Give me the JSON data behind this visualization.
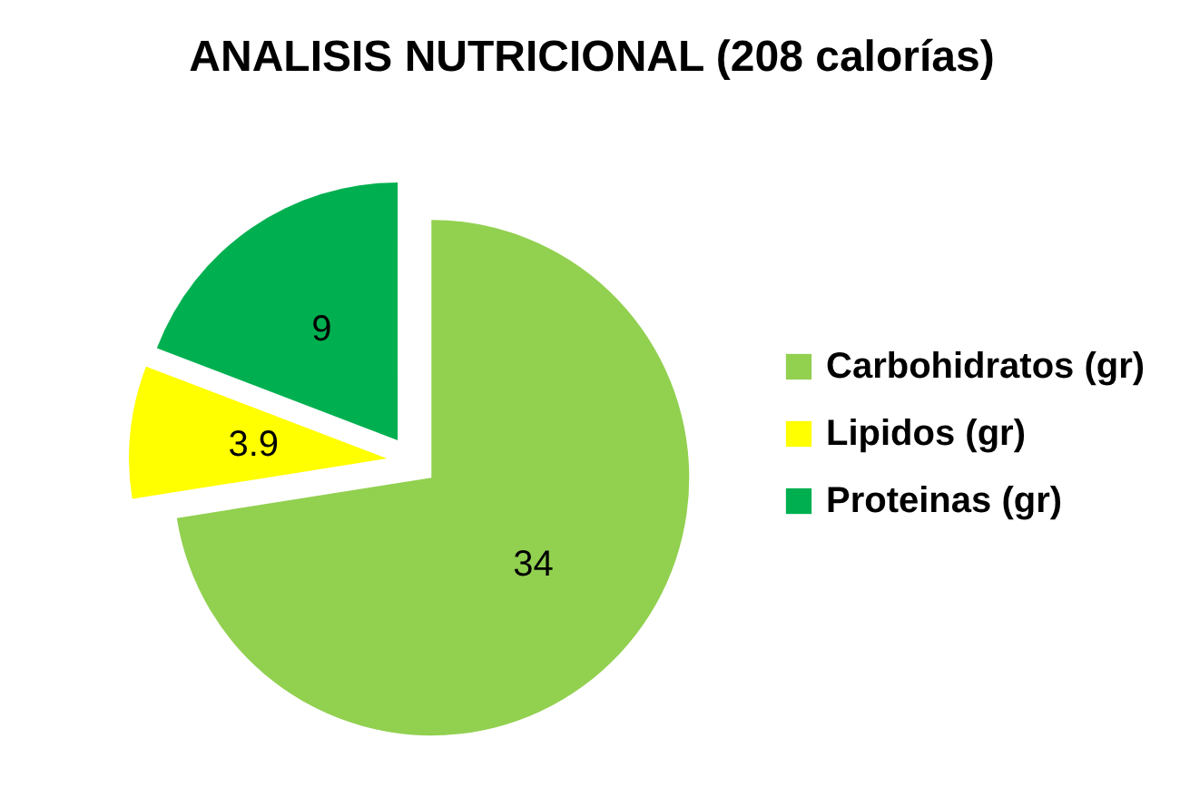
{
  "chart_data": {
    "type": "pie",
    "title": "ANALISIS NUTRICIONAL (208 calorías)",
    "categories": [
      "Carbohidratos (gr)",
      "Lipidos (gr)",
      "Proteinas (gr)"
    ],
    "values": [
      34,
      3.9,
      9
    ],
    "colors": [
      "#92d050",
      "#ffff00",
      "#00b050"
    ],
    "data_labels": true,
    "legend": "right"
  }
}
